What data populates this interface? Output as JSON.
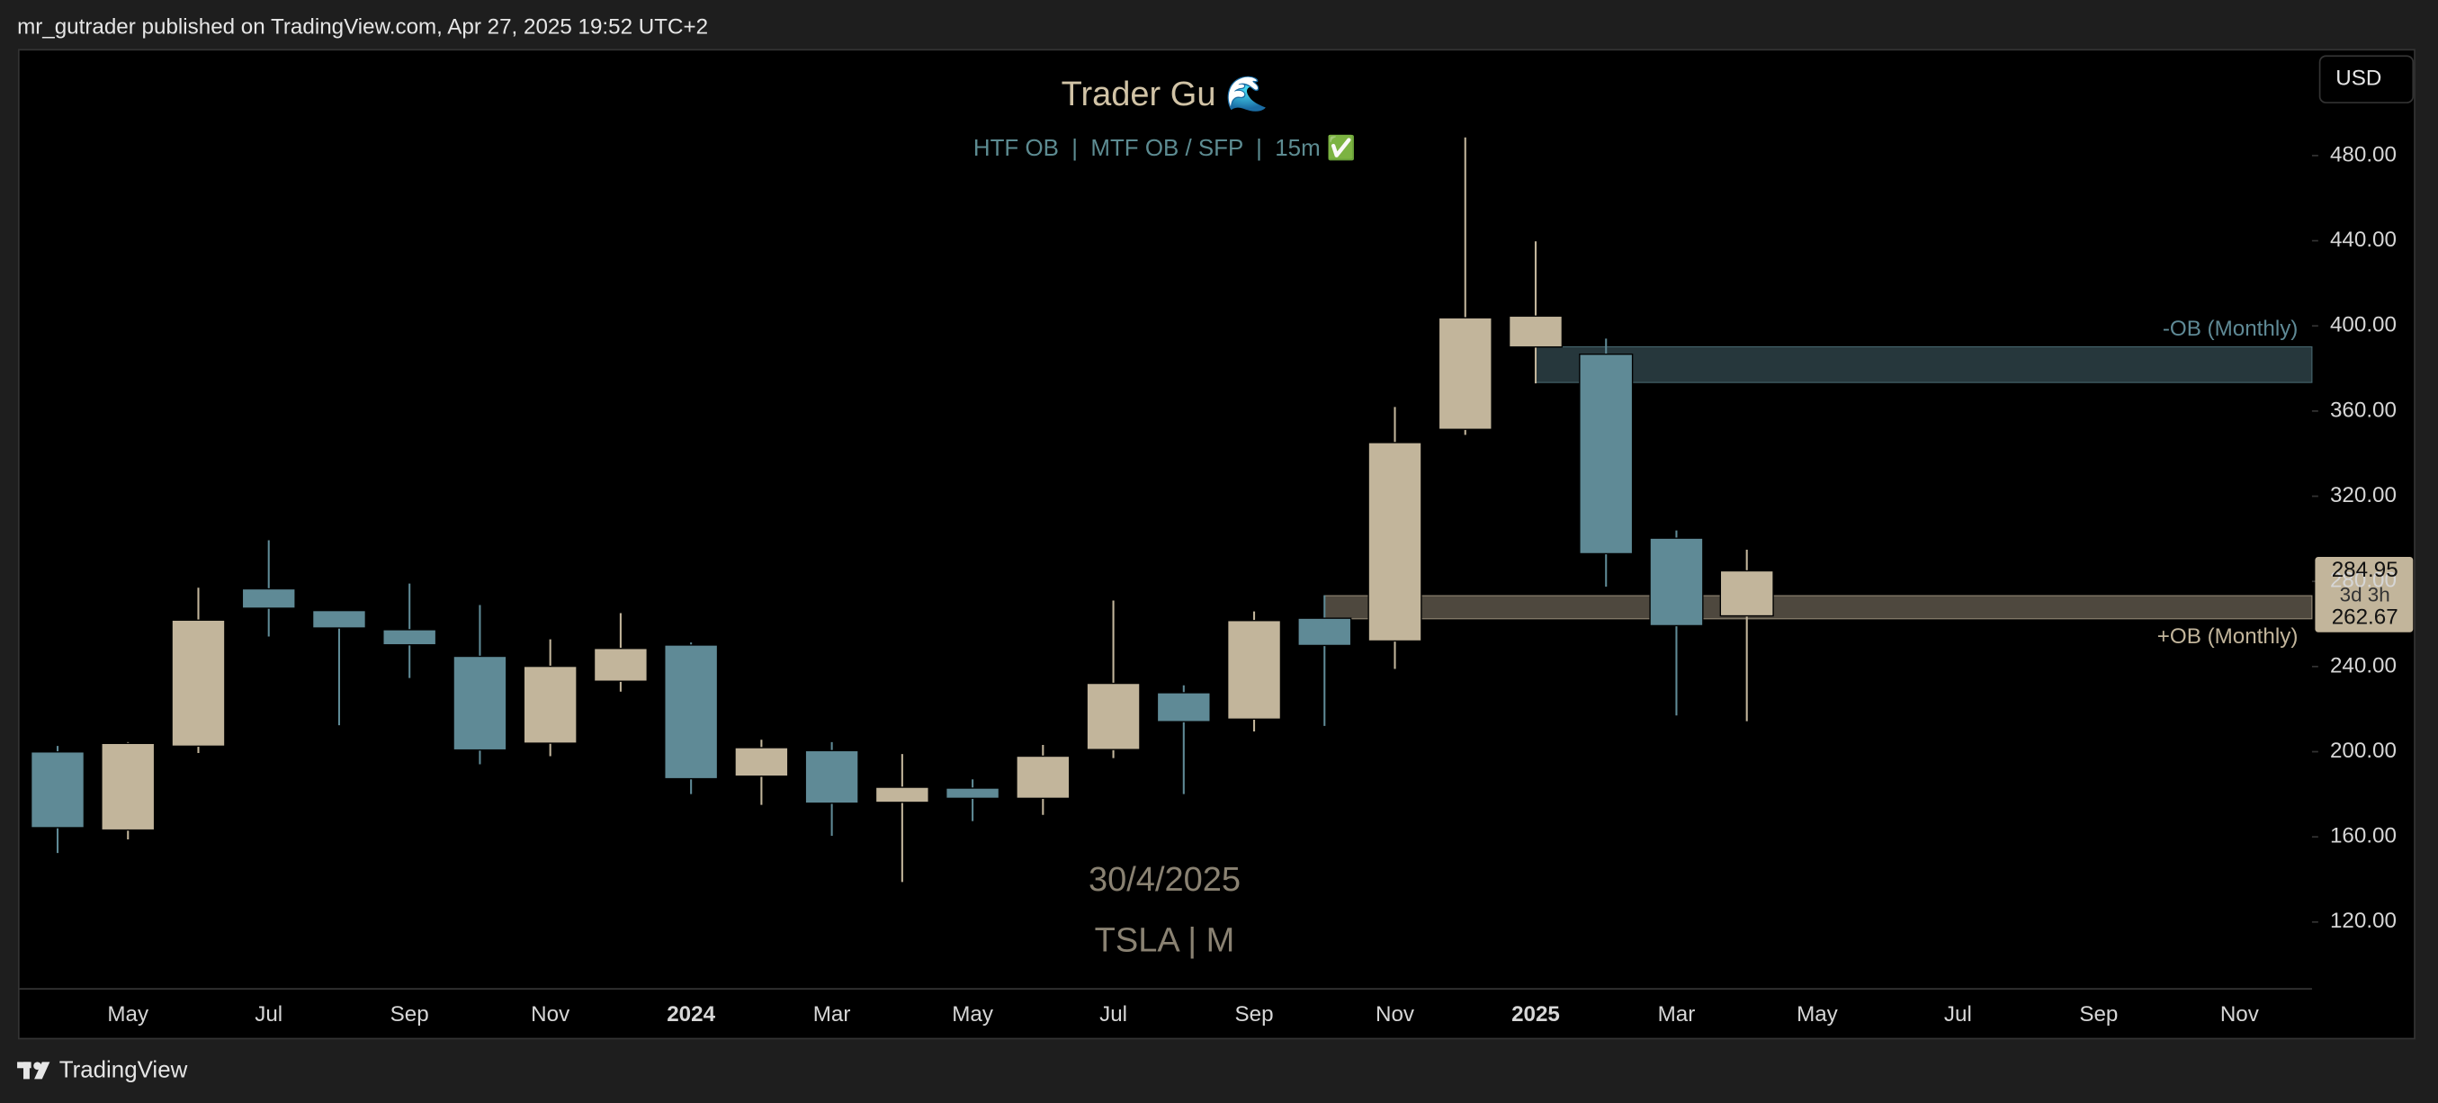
{
  "header": {
    "text": "mr_gutrader published on TradingView.com, Apr 27, 2025 19:52 UTC+2"
  },
  "footer": {
    "brand": "TradingView"
  },
  "currency_button": "USD",
  "chart_data": {
    "type": "candlestick",
    "title": "Trader Gu 🌊",
    "subtitle": "HTF OB  |  MTF OB / SFP  |  15m ✅",
    "watermark": [
      "30/4/2025",
      "TSLA | M"
    ],
    "categories": [
      null,
      "May",
      null,
      "Jul",
      null,
      "Sep",
      null,
      "Nov",
      null,
      "2024",
      null,
      "Mar",
      null,
      "May",
      null,
      "Jul",
      null,
      "Sep",
      null,
      "Nov",
      null,
      "2025",
      null,
      "Mar",
      null,
      "May",
      null,
      "Jul",
      null,
      "Sep",
      null,
      "Nov"
    ],
    "bold_categories": [
      "2024",
      "2025"
    ],
    "open": [
      199.9,
      163.2,
      202.6,
      276.5,
      266.3,
      257.3,
      244.8,
      204.0,
      233.1,
      250.1,
      188.5,
      200.5,
      176.2,
      182.9,
      178.1,
      201.0,
      227.7,
      215.3,
      262.7,
      252.0,
      351.4,
      390.1,
      386.7,
      300.3,
      263.8,
      null,
      null,
      null,
      null,
      null,
      null,
      null
    ],
    "high": [
      202.7,
      204.5,
      277.0,
      299.3,
      266.5,
      279.0,
      268.9,
      252.8,
      265.1,
      251.3,
      205.6,
      204.5,
      198.9,
      187.0,
      203.2,
      271.0,
      231.2,
      265.9,
      273.5,
      361.9,
      488.5,
      439.7,
      394.0,
      303.9,
      294.9,
      null,
      null,
      null,
      null,
      null,
      null,
      null
    ],
    "low": [
      152.4,
      158.8,
      199.4,
      254.1,
      212.4,
      234.6,
      194.1,
      197.9,
      228.2,
      180.1,
      175.0,
      160.5,
      138.8,
      167.4,
      170.3,
      197.0,
      180.1,
      209.5,
      212.1,
      238.9,
      348.8,
      373.0,
      277.5,
      217.0,
      214.3,
      null,
      null,
      null,
      null,
      null,
      null,
      null
    ],
    "close": [
      164.3,
      203.9,
      261.8,
      267.4,
      258.1,
      250.2,
      200.8,
      240.1,
      248.5,
      187.3,
      201.9,
      175.8,
      183.3,
      178.1,
      197.9,
      232.1,
      214.1,
      261.6,
      249.9,
      345.2,
      403.8,
      404.6,
      293.0,
      259.2,
      284.95,
      null,
      null,
      null,
      null,
      null,
      null,
      null
    ],
    "up_color": "#c2b59b",
    "down_color": "#5f8a96",
    "ylim": [
      88.6,
      529.7
    ],
    "yticks": [
      {
        "value": 120,
        "label": "120.00"
      },
      {
        "value": 160,
        "label": "160.00"
      },
      {
        "value": 200,
        "label": "200.00"
      },
      {
        "value": 240,
        "label": "240.00"
      },
      {
        "value": 280,
        "label": "280.00"
      },
      {
        "value": 320,
        "label": "320.00"
      },
      {
        "value": 360,
        "label": "360.00"
      },
      {
        "value": 400,
        "label": "400.00"
      },
      {
        "value": 440,
        "label": "440.00"
      },
      {
        "value": 480,
        "label": "480.00"
      }
    ],
    "zones": [
      {
        "label": "-OB (Monthly)",
        "top": 390.2,
        "bottom": 373.4,
        "color": "#5f8a96"
      },
      {
        "label": "+OB (Monthly)",
        "top": 273.3,
        "bottom": 262.4,
        "color": "#c2b59b"
      }
    ],
    "price_labels": {
      "last": 284.95,
      "countdown": "3d 3h",
      "level": 262.67
    }
  }
}
